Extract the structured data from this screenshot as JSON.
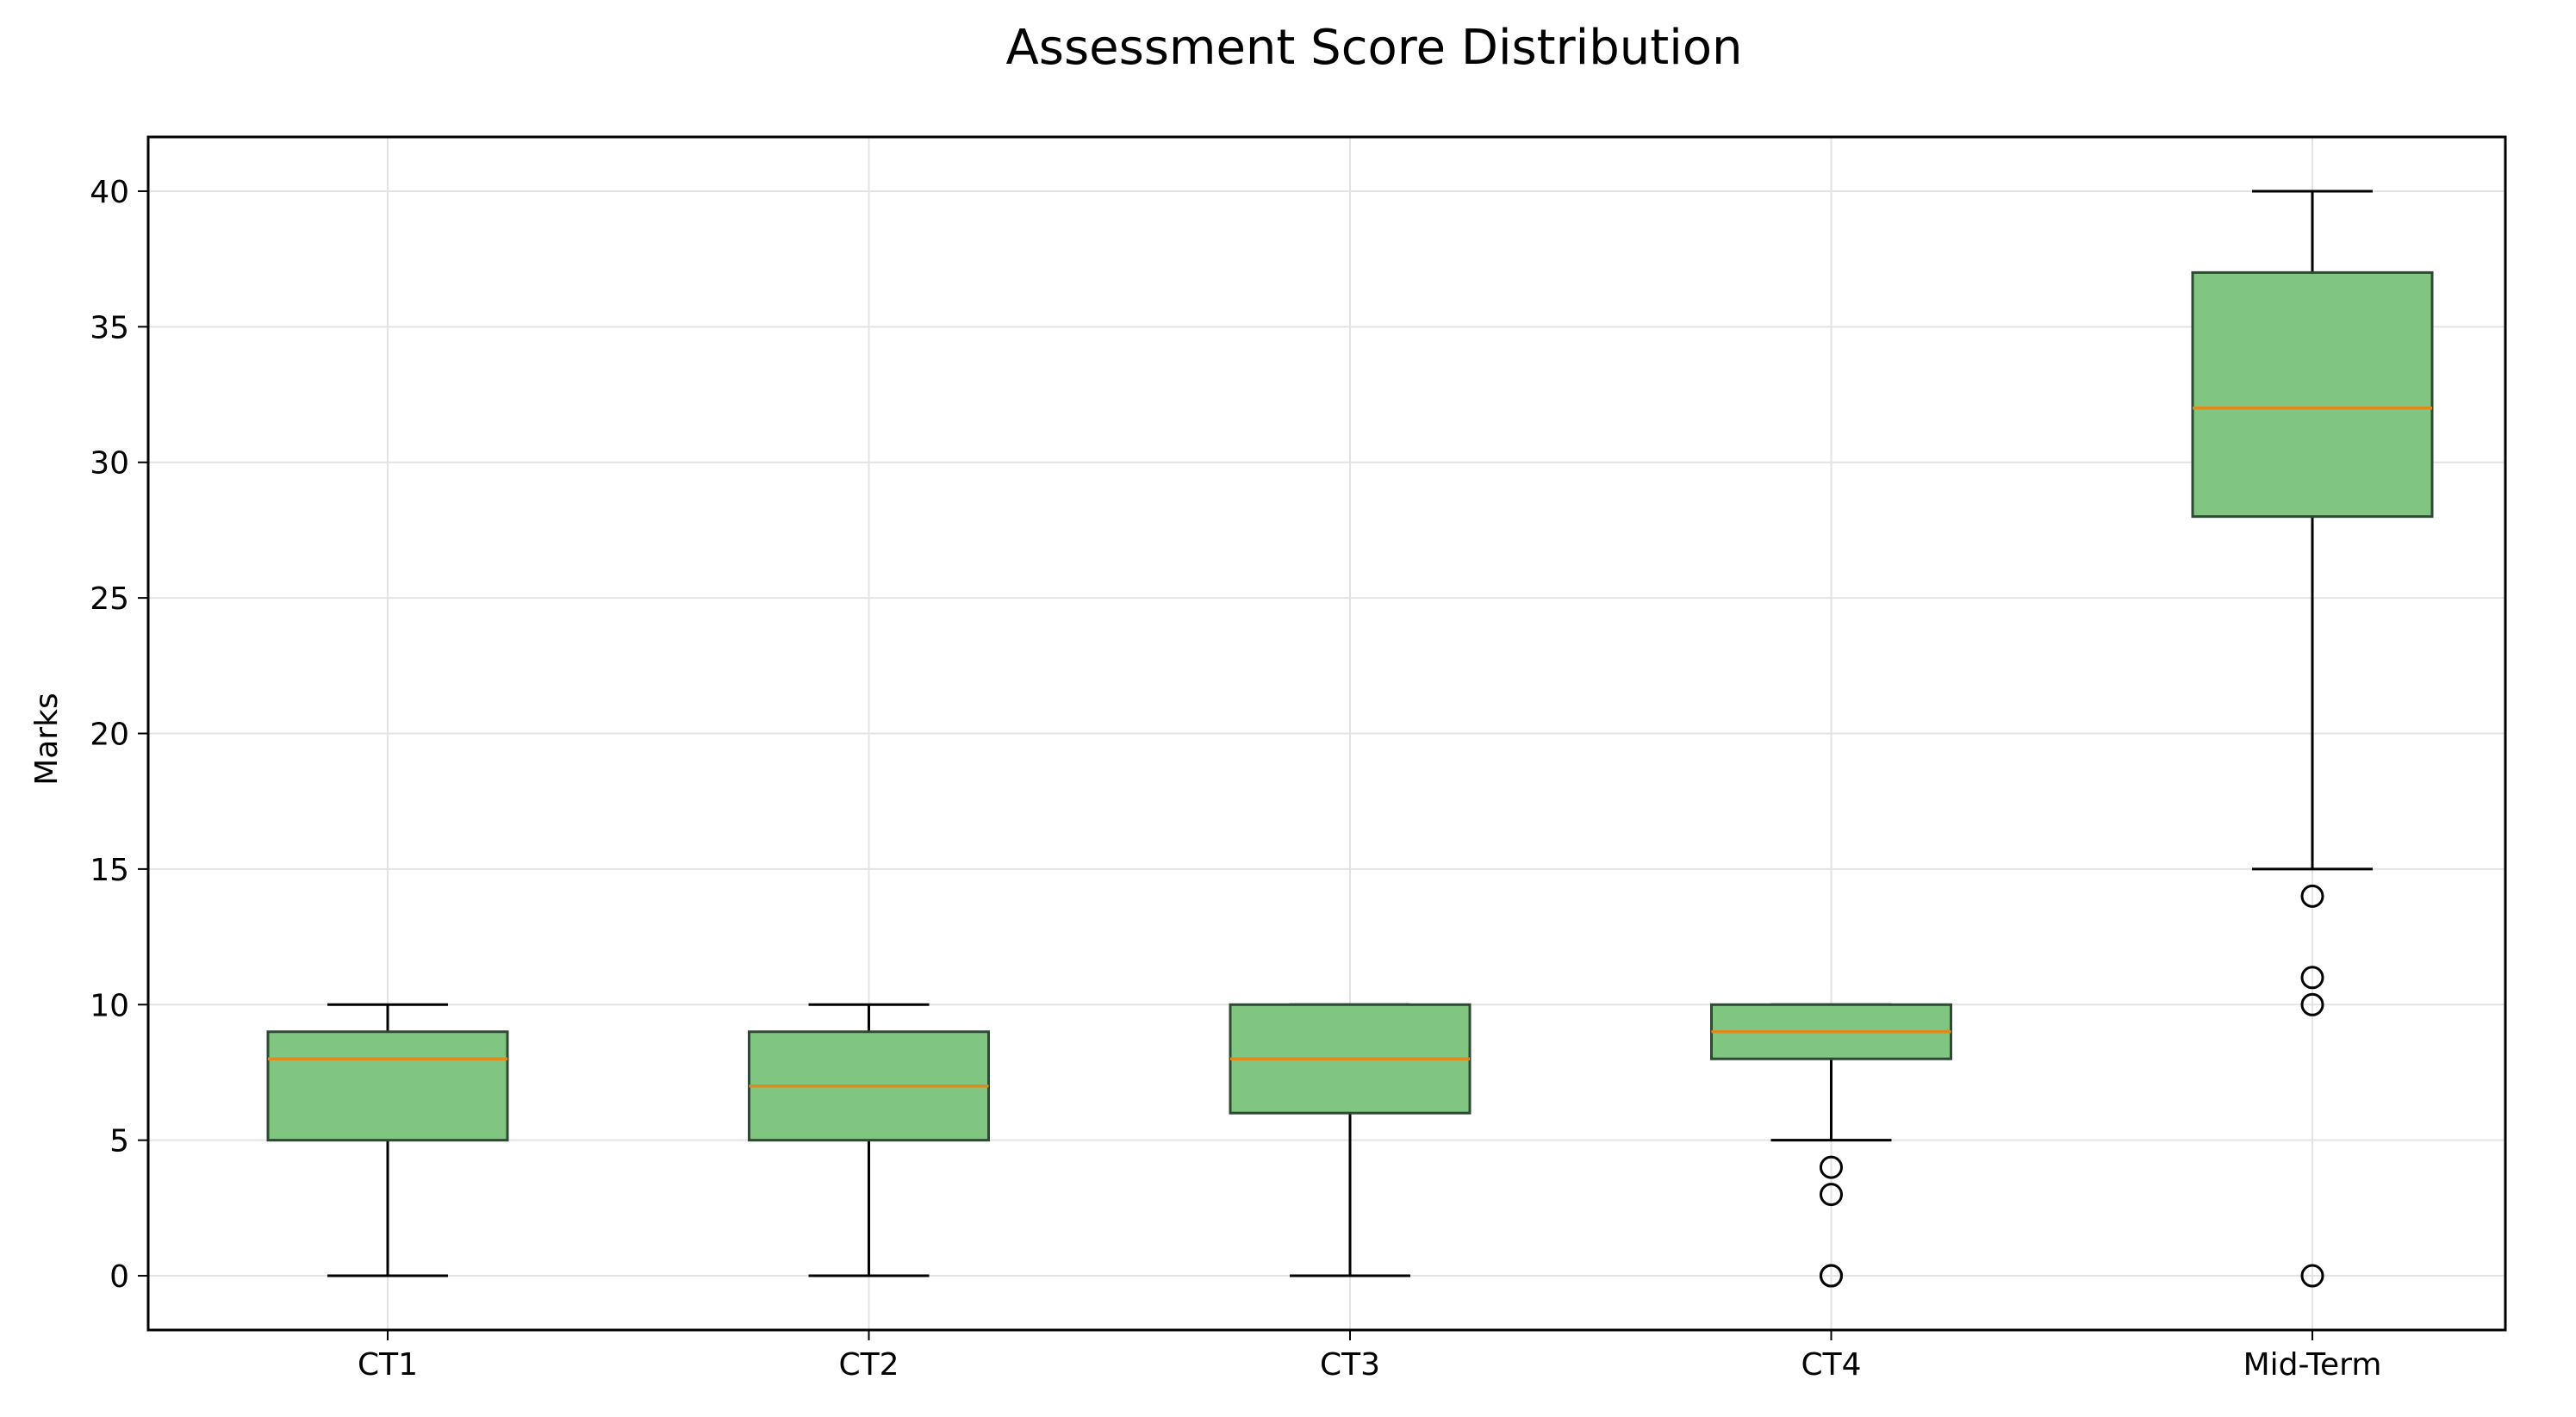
{
  "chart_data": {
    "type": "box",
    "title": "Assessment Score Distribution",
    "xlabel": "",
    "ylabel": "Marks",
    "ylim": [
      -2,
      42
    ],
    "yticks": [
      0,
      5,
      10,
      15,
      20,
      25,
      30,
      35,
      40
    ],
    "grid": true,
    "categories": [
      "CT1",
      "CT2",
      "CT3",
      "CT4",
      "Mid-Term"
    ],
    "boxes": [
      {
        "label": "CT1",
        "whisker_low": 0,
        "q1": 5,
        "median": 8,
        "q3": 9,
        "whisker_high": 10,
        "outliers": []
      },
      {
        "label": "CT2",
        "whisker_low": 0,
        "q1": 5,
        "median": 7,
        "q3": 9,
        "whisker_high": 10,
        "outliers": []
      },
      {
        "label": "CT3",
        "whisker_low": 0,
        "q1": 6,
        "median": 8,
        "q3": 10,
        "whisker_high": 10,
        "outliers": []
      },
      {
        "label": "CT4",
        "whisker_low": 5,
        "q1": 8,
        "median": 9,
        "q3": 10,
        "whisker_high": 10,
        "outliers": [
          4,
          3,
          0,
          0
        ]
      },
      {
        "label": "Mid-Term",
        "whisker_low": 15,
        "q1": 28,
        "median": 32,
        "q3": 37,
        "whisker_high": 40,
        "outliers": [
          14,
          11,
          10,
          0
        ]
      }
    ],
    "colors": {
      "box_fill": "#80c680",
      "box_edge": "#2e4a34",
      "median": "#e08a1e",
      "whisker": "#000000",
      "grid": "#e3e3e3",
      "axes": "#000000"
    }
  }
}
